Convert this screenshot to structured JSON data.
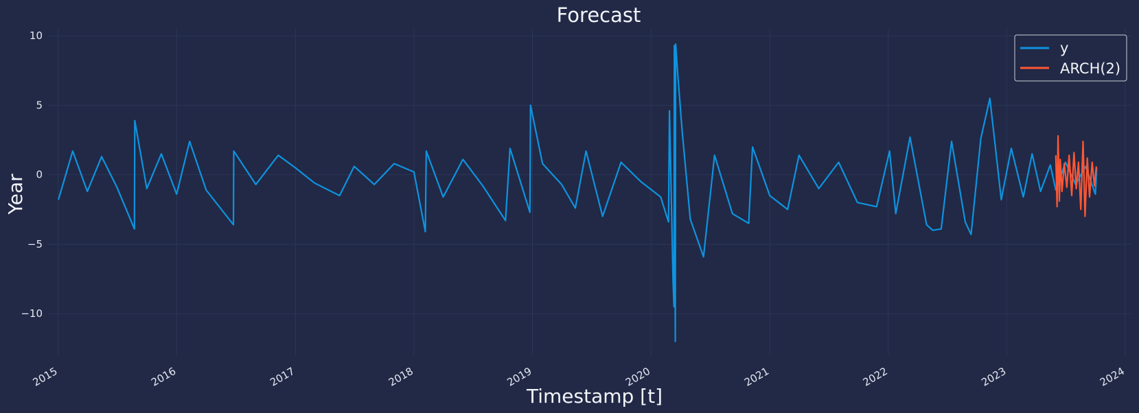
{
  "chart_data": {
    "type": "line",
    "title": "Forecast",
    "xlabel": "Timestamp [t]",
    "ylabel": "Year",
    "x_type": "date",
    "xlim": [
      "2014-12-01",
      "2024-01-20"
    ],
    "ylim": [
      -13,
      10.5
    ],
    "x_ticks": [
      "2015",
      "2016",
      "2017",
      "2018",
      "2019",
      "2020",
      "2021",
      "2022",
      "2023",
      "2024"
    ],
    "y_ticks": [
      -10,
      -5,
      0,
      5,
      10
    ],
    "grid": true,
    "legend_position": "top-right",
    "series": [
      {
        "name": "y",
        "color": "#0e93df",
        "x": [
          "2015-01-02",
          "2015-02-15",
          "2015-04-01",
          "2015-05-15",
          "2015-07-01",
          "2015-08-24",
          "2015-08-25",
          "2015-10-01",
          "2015-11-15",
          "2016-01-01",
          "2016-02-10",
          "2016-04-01",
          "2016-06-24",
          "2016-06-25",
          "2016-09-01",
          "2016-11-09",
          "2017-01-01",
          "2017-03-01",
          "2017-05-17",
          "2017-07-01",
          "2017-09-01",
          "2017-11-01",
          "2018-01-01",
          "2018-02-05",
          "2018-02-08",
          "2018-04-01",
          "2018-06-01",
          "2018-08-01",
          "2018-10-10",
          "2018-10-24",
          "2018-12-24",
          "2018-12-26",
          "2019-02-01",
          "2019-04-01",
          "2019-05-13",
          "2019-06-15",
          "2019-08-05",
          "2019-10-01",
          "2019-12-01",
          "2020-01-31",
          "2020-02-24",
          "2020-02-27",
          "2020-03-09",
          "2020-03-12",
          "2020-03-13",
          "2020-03-16",
          "2020-03-17",
          "2020-03-24",
          "2020-04-06",
          "2020-05-01",
          "2020-06-11",
          "2020-07-15",
          "2020-09-08",
          "2020-10-28",
          "2020-11-09",
          "2021-01-01",
          "2021-02-25",
          "2021-04-01",
          "2021-06-01",
          "2021-08-01",
          "2021-09-28",
          "2021-11-26",
          "2022-01-05",
          "2022-01-24",
          "2022-03-09",
          "2022-04-29",
          "2022-05-18",
          "2022-06-13",
          "2022-07-15",
          "2022-08-26",
          "2022-09-13",
          "2022-10-13",
          "2022-11-10",
          "2022-12-15",
          "2023-01-15",
          "2023-02-21",
          "2023-03-20",
          "2023-04-15",
          "2023-05-15",
          "2023-06-01",
          "2023-07-01",
          "2023-08-01",
          "2023-09-01",
          "2023-10-01",
          "2023-10-05"
        ],
        "y": [
          -1.8,
          1.7,
          -1.2,
          1.3,
          -0.9,
          -3.9,
          3.9,
          -1.0,
          1.5,
          -1.4,
          2.4,
          -1.1,
          -3.6,
          1.7,
          -0.7,
          1.4,
          0.5,
          -0.6,
          -1.5,
          0.6,
          -0.7,
          0.8,
          0.2,
          -4.1,
          1.7,
          -1.6,
          1.1,
          -0.8,
          -3.3,
          1.9,
          -2.7,
          5.0,
          0.8,
          -0.7,
          -2.4,
          1.7,
          -3.0,
          0.9,
          -0.5,
          -1.6,
          -3.4,
          4.6,
          -7.6,
          -9.5,
          9.3,
          -12.0,
          9.4,
          7.1,
          3.2,
          -3.2,
          -5.9,
          1.4,
          -2.8,
          -3.5,
          2.0,
          -1.5,
          -2.5,
          1.4,
          -1.0,
          0.9,
          -2.0,
          -2.3,
          1.7,
          -2.8,
          2.7,
          -3.6,
          -4.0,
          -3.9,
          2.4,
          -3.4,
          -4.3,
          2.6,
          5.5,
          -1.8,
          1.9,
          -1.6,
          1.5,
          -1.2,
          0.7,
          -1.1,
          0.9,
          -0.7,
          0.6,
          -1.4,
          0.5
        ]
      },
      {
        "name": "ARCH(2)",
        "color": "#ff5733",
        "x": [
          "2023-06-01",
          "2023-06-05",
          "2023-06-08",
          "2023-06-12",
          "2023-06-15",
          "2023-06-20",
          "2023-06-27",
          "2023-07-05",
          "2023-07-12",
          "2023-07-20",
          "2023-07-27",
          "2023-08-03",
          "2023-08-10",
          "2023-08-17",
          "2023-08-24",
          "2023-08-30",
          "2023-09-06",
          "2023-09-13",
          "2023-09-21",
          "2023-09-28",
          "2023-10-04"
        ],
        "y": [
          1.4,
          -2.3,
          2.8,
          -1.9,
          1.1,
          -1.2,
          0.8,
          -0.9,
          1.4,
          -1.5,
          1.6,
          -1.0,
          0.9,
          -2.5,
          2.4,
          -3.0,
          1.2,
          -1.6,
          0.9,
          -0.8,
          0.6
        ]
      }
    ]
  }
}
